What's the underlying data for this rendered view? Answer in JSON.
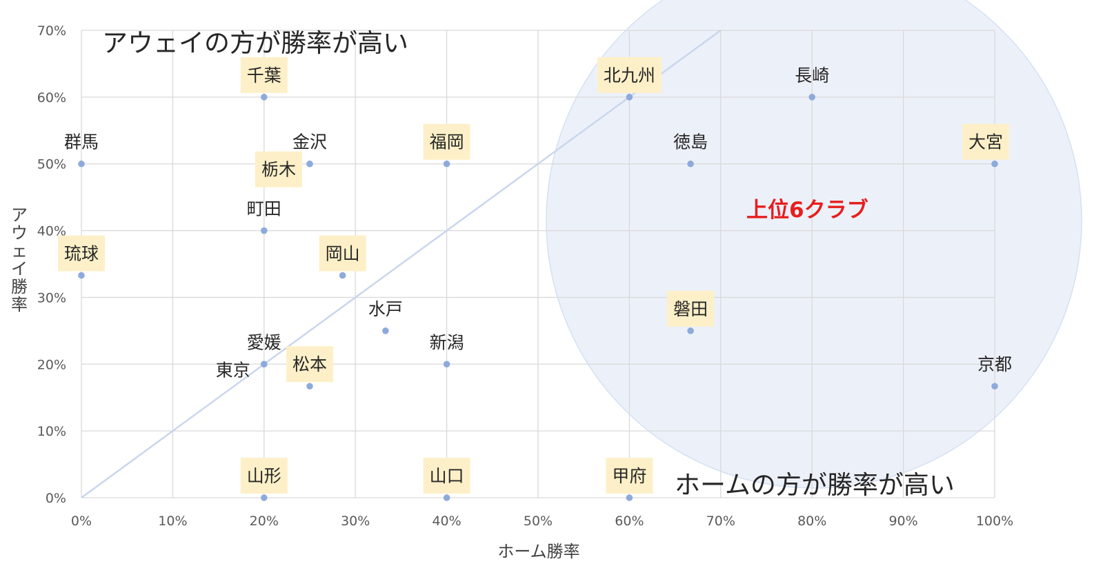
{
  "chart_data": {
    "type": "scatter",
    "xlabel": "ホーム勝率",
    "ylabel": "アウェイ勝率",
    "xlim": [
      0,
      1
    ],
    "ylim": [
      0,
      0.7
    ],
    "x_ticks": [
      "0%",
      "10%",
      "20%",
      "30%",
      "40%",
      "50%",
      "60%",
      "70%",
      "80%",
      "90%",
      "100%"
    ],
    "y_ticks": [
      "0%",
      "10%",
      "20%",
      "30%",
      "40%",
      "50%",
      "60%",
      "70%"
    ],
    "grid": true,
    "diagonal_line": true,
    "annotations": {
      "top_left": "アウェイの方が勝率が高い",
      "bottom_right": "ホームの方が勝率が高い",
      "highlight": "上位6クラブ"
    },
    "colors": {
      "point": "#8eaadb",
      "label_box": "#fdf0c8",
      "highlight_text": "#e81d1d",
      "circle_fill": "#e9eef8",
      "circle_stroke": "#d6e0f2",
      "grid": "#d9d9d9",
      "diagonal": "#c9d6ee"
    },
    "points": [
      {
        "name": "群馬",
        "x": 0.0,
        "y": 0.5,
        "boxed": false
      },
      {
        "name": "琉球",
        "x": 0.0,
        "y": 0.333,
        "boxed": true
      },
      {
        "name": "千葉",
        "x": 0.2,
        "y": 0.6,
        "boxed": true
      },
      {
        "name": "町田",
        "x": 0.2,
        "y": 0.4,
        "boxed": false
      },
      {
        "name": "愛媛",
        "x": 0.2,
        "y": 0.2,
        "boxed": false
      },
      {
        "name": "東京",
        "x": 0.2,
        "y": 0.2,
        "boxed": false
      },
      {
        "name": "山形",
        "x": 0.2,
        "y": 0.0,
        "boxed": true
      },
      {
        "name": "金沢",
        "x": 0.25,
        "y": 0.5,
        "boxed": false
      },
      {
        "name": "栃木",
        "x": 0.25,
        "y": 0.5,
        "boxed": true
      },
      {
        "name": "松本",
        "x": 0.25,
        "y": 0.167,
        "boxed": true
      },
      {
        "name": "岡山",
        "x": 0.286,
        "y": 0.333,
        "boxed": true
      },
      {
        "name": "水戸",
        "x": 0.333,
        "y": 0.25,
        "boxed": false
      },
      {
        "name": "福岡",
        "x": 0.4,
        "y": 0.5,
        "boxed": true
      },
      {
        "name": "新潟",
        "x": 0.4,
        "y": 0.2,
        "boxed": false
      },
      {
        "name": "山口",
        "x": 0.4,
        "y": 0.0,
        "boxed": true
      },
      {
        "name": "北九州",
        "x": 0.6,
        "y": 0.6,
        "boxed": true
      },
      {
        "name": "甲府",
        "x": 0.6,
        "y": 0.0,
        "boxed": true
      },
      {
        "name": "徳島",
        "x": 0.667,
        "y": 0.5,
        "boxed": false
      },
      {
        "name": "磐田",
        "x": 0.667,
        "y": 0.25,
        "boxed": true
      },
      {
        "name": "長崎",
        "x": 0.8,
        "y": 0.6,
        "boxed": false
      },
      {
        "name": "大宮",
        "x": 1.0,
        "y": 0.5,
        "boxed": true
      },
      {
        "name": "京都",
        "x": 1.0,
        "y": 0.167,
        "boxed": false
      }
    ]
  }
}
